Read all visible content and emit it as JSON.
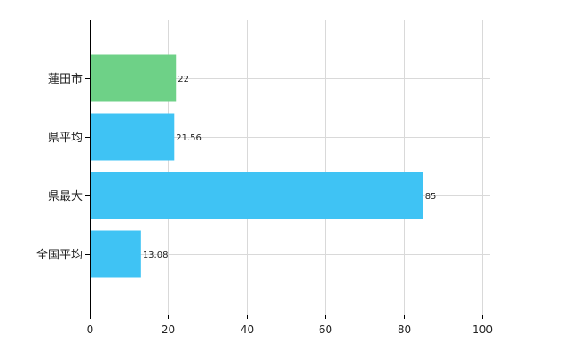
{
  "chart_data": {
    "type": "bar",
    "orientation": "horizontal",
    "categories": [
      "蓮田市",
      "県平均",
      "県最大",
      "全国平均"
    ],
    "values": [
      22,
      21.56,
      85,
      13.08
    ],
    "value_labels": [
      "22",
      "21.56",
      "85",
      "13.08"
    ],
    "bar_colors": [
      "#6ed187",
      "#3fc3f4",
      "#3fc3f4",
      "#3fc3f4"
    ],
    "xlim": [
      0,
      100
    ],
    "xticks": [
      0,
      20,
      40,
      60,
      80,
      100
    ],
    "xlabel": "",
    "ylabel": "",
    "title": "",
    "grid": true
  }
}
